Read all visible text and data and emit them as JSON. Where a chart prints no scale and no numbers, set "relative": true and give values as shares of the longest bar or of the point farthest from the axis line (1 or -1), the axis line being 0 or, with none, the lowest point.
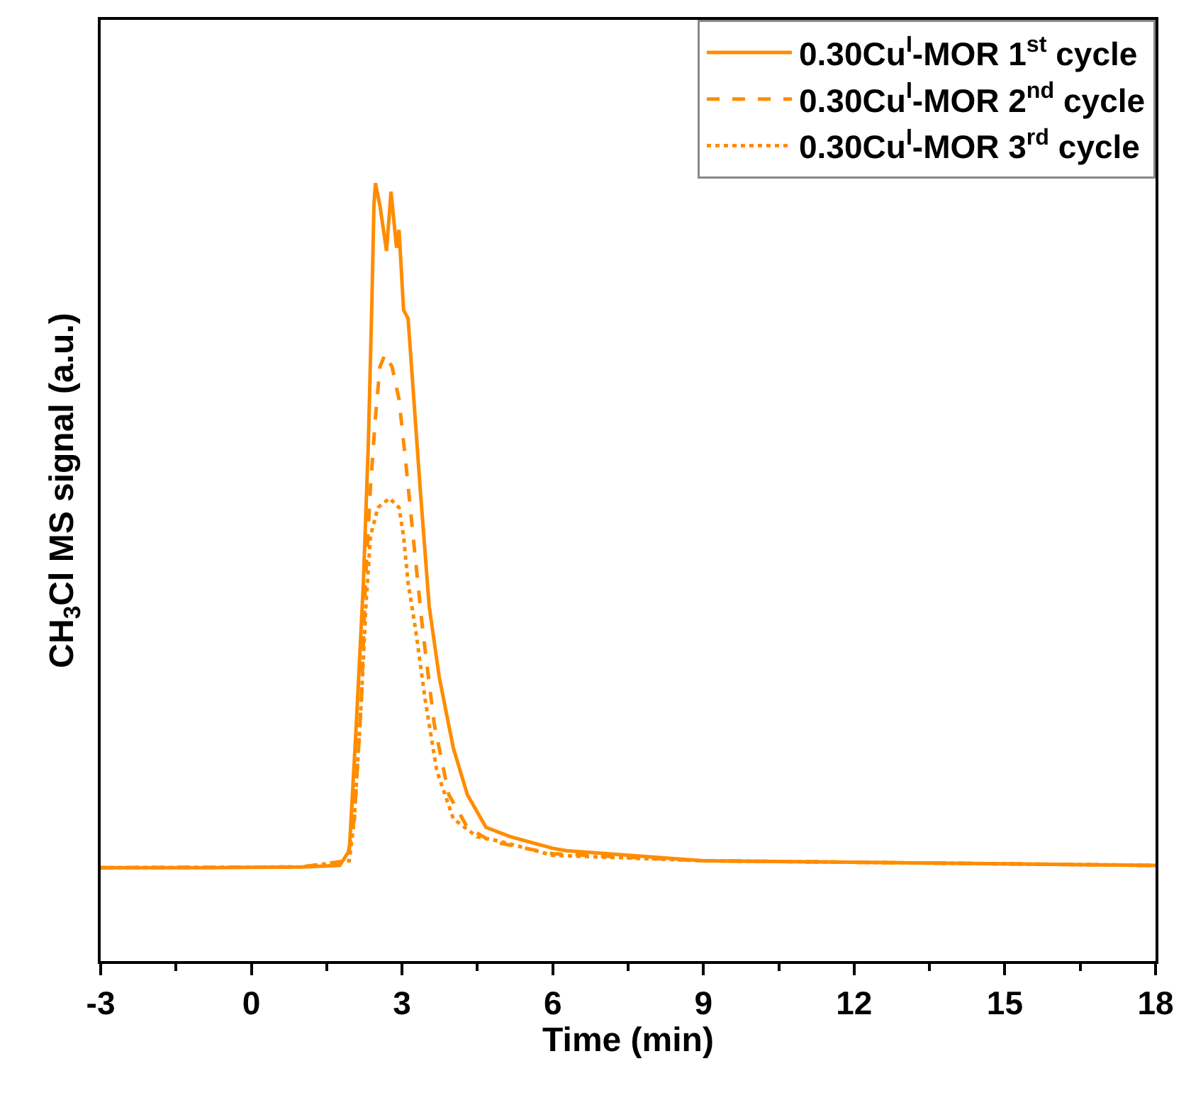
{
  "chart_data": {
    "type": "line",
    "xlabel": "Time (min)",
    "ylabel": "CH$_{3}$Cl MS signal (a.u.)",
    "relative": true,
    "xlim": [
      -3,
      18
    ],
    "xticks": [
      -3,
      0,
      3,
      6,
      9,
      12,
      15,
      18
    ],
    "legend": "top right",
    "grid": false,
    "marker": "none",
    "series": [
      {
        "name": "0.30Cu$^{I}$-MOR 1$^{st}$ cycle",
        "color": "#ff8c00",
        "line_style": "solid",
        "x": [
          -3,
          -1,
          1,
          1.76,
          1.95,
          2.09,
          2.23,
          2.33,
          2.4,
          2.44,
          2.47,
          2.56,
          2.69,
          2.78,
          2.89,
          2.94,
          3.03,
          3.12,
          3.36,
          3.54,
          3.74,
          4.02,
          4.3,
          4.67,
          5.15,
          6,
          6.27,
          9,
          12,
          15,
          18
        ],
        "values": [
          0.12,
          0.12,
          0.121,
          0.123,
          0.142,
          0.305,
          0.486,
          0.668,
          0.849,
          0.971,
          1.0,
          0.971,
          0.913,
          0.989,
          0.917,
          0.94,
          0.837,
          0.826,
          0.608,
          0.456,
          0.365,
          0.274,
          0.214,
          0.172,
          0.16,
          0.145,
          0.142,
          0.129,
          0.127,
          0.125,
          0.123
        ]
      },
      {
        "name": "0.30Cu$^{I}$-MOR 2$^{nd}$ cycle",
        "color": "#ff8c00",
        "line_style": "dashed",
        "x": [
          -3,
          1,
          1.9,
          2.05,
          2.19,
          2.27,
          2.37,
          2.47,
          2.56,
          2.66,
          2.8,
          2.94,
          3.08,
          3.22,
          3.41,
          3.64,
          3.93,
          4.3,
          4.77,
          6,
          9,
          12,
          15,
          18
        ],
        "values": [
          0.12,
          0.121,
          0.129,
          0.183,
          0.336,
          0.486,
          0.608,
          0.699,
          0.764,
          0.78,
          0.764,
          0.722,
          0.637,
          0.546,
          0.426,
          0.305,
          0.214,
          0.172,
          0.154,
          0.138,
          0.129,
          0.127,
          0.125,
          0.123
        ]
      },
      {
        "name": "0.30Cu$^{I}$-MOR 3$^{rd}$ cycle",
        "color": "#ff8c00",
        "line_style": "dotted",
        "x": [
          -3,
          1,
          1.95,
          2.05,
          2.19,
          2.28,
          2.37,
          2.52,
          2.75,
          2.94,
          3.03,
          3.12,
          3.27,
          3.46,
          3.69,
          4.02,
          4.49,
          4.95,
          6,
          9,
          12,
          15,
          18
        ],
        "values": [
          0.12,
          0.121,
          0.129,
          0.183,
          0.336,
          0.456,
          0.546,
          0.583,
          0.595,
          0.583,
          0.546,
          0.486,
          0.426,
          0.336,
          0.245,
          0.183,
          0.16,
          0.154,
          0.136,
          0.129,
          0.127,
          0.125,
          0.123
        ]
      }
    ]
  }
}
